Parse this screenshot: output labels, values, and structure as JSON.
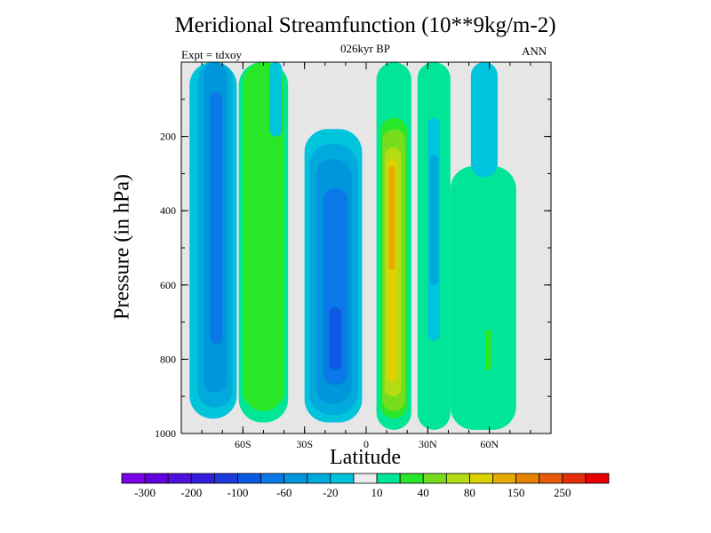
{
  "chart_data": {
    "type": "heatmap",
    "title": "Meridional Streamfunction (10**9kg/m-2)",
    "subtitle": "026kyr BP",
    "left_note": "Expt = tdxoy",
    "right_note": "ANN",
    "xlabel": "Latitude",
    "ylabel": "Pressure (in hPa)",
    "x_range": [
      -90,
      90
    ],
    "y_range": [
      0,
      1000
    ],
    "y_reversed": true,
    "x_ticks": [
      {
        "value": -60,
        "label": "60S"
      },
      {
        "value": -30,
        "label": "30S"
      },
      {
        "value": 0,
        "label": "0"
      },
      {
        "value": 30,
        "label": "30N"
      },
      {
        "value": 60,
        "label": "60N"
      }
    ],
    "y_ticks": [
      {
        "value": 200,
        "label": "200"
      },
      {
        "value": 400,
        "label": "400"
      },
      {
        "value": 600,
        "label": "600"
      },
      {
        "value": 800,
        "label": "800"
      },
      {
        "value": 1000,
        "label": "1000"
      }
    ],
    "background_color": "#e6e6e6",
    "colorbar": {
      "colors": [
        "#7a00e6",
        "#6400e0",
        "#4f10dc",
        "#3420dc",
        "#1e3cdc",
        "#0a5ae6",
        "#0a78e6",
        "#0096dc",
        "#00aadc",
        "#00c3dc",
        "#ebebeb",
        "#00e696",
        "#28e628",
        "#78dc1e",
        "#b4dc14",
        "#dcd200",
        "#e6aa00",
        "#e68200",
        "#e65a0a",
        "#e62d0a",
        "#e60000"
      ],
      "labels": [
        {
          "after_index": 0,
          "text": "-300"
        },
        {
          "after_index": 2,
          "text": "-200"
        },
        {
          "after_index": 4,
          "text": "-100"
        },
        {
          "after_index": 6,
          "text": "-60"
        },
        {
          "after_index": 8,
          "text": "-20"
        },
        {
          "after_index": 10,
          "text": "10"
        },
        {
          "after_index": 12,
          "text": "40"
        },
        {
          "after_index": 14,
          "text": "80"
        },
        {
          "after_index": 16,
          "text": "150"
        },
        {
          "after_index": 18,
          "text": "250"
        }
      ]
    },
    "fill_levels": [
      {
        "lat_min": -86,
        "lat_max": -63,
        "p_min": 0,
        "p_max": 960,
        "color": "#00c3dc"
      },
      {
        "lat_min": -82,
        "lat_max": -65,
        "p_min": 0,
        "p_max": 930,
        "color": "#00aadc"
      },
      {
        "lat_min": -79,
        "lat_max": -68,
        "p_min": 0,
        "p_max": 890,
        "color": "#0096dc"
      },
      {
        "lat_min": -76,
        "lat_max": -70,
        "p_min": 80,
        "p_max": 760,
        "color": "#0a78e6"
      },
      {
        "lat_min": -62,
        "lat_max": -38,
        "p_min": 0,
        "p_max": 970,
        "color": "#00e696"
      },
      {
        "lat_min": -60,
        "lat_max": -40,
        "p_min": 0,
        "p_max": 940,
        "color": "#28e628"
      },
      {
        "lat_min": -47,
        "lat_max": -41,
        "p_min": 0,
        "p_max": 200,
        "color": "#00c3dc"
      },
      {
        "lat_min": -30,
        "lat_max": -2,
        "p_min": 180,
        "p_max": 970,
        "color": "#00c3dc"
      },
      {
        "lat_min": -28,
        "lat_max": -4,
        "p_min": 220,
        "p_max": 950,
        "color": "#00aadc"
      },
      {
        "lat_min": -25,
        "lat_max": -7,
        "p_min": 260,
        "p_max": 920,
        "color": "#0096dc"
      },
      {
        "lat_min": -21,
        "lat_max": -9,
        "p_min": 340,
        "p_max": 870,
        "color": "#0a78e6"
      },
      {
        "lat_min": -18,
        "lat_max": -12,
        "p_min": 660,
        "p_max": 830,
        "color": "#0a5ae6"
      },
      {
        "lat_min": 5,
        "lat_max": 22,
        "p_min": 0,
        "p_max": 990,
        "color": "#00e696"
      },
      {
        "lat_min": 7,
        "lat_max": 20,
        "p_min": 150,
        "p_max": 960,
        "color": "#28e628"
      },
      {
        "lat_min": 8,
        "lat_max": 19,
        "p_min": 180,
        "p_max": 940,
        "color": "#78dc1e"
      },
      {
        "lat_min": 9,
        "lat_max": 17,
        "p_min": 230,
        "p_max": 900,
        "color": "#b4dc14"
      },
      {
        "lat_min": 10,
        "lat_max": 15,
        "p_min": 260,
        "p_max": 860,
        "color": "#dcd200"
      },
      {
        "lat_min": 11,
        "lat_max": 14,
        "p_min": 280,
        "p_max": 560,
        "color": "#e6aa00"
      },
      {
        "lat_min": 25,
        "lat_max": 41,
        "p_min": 0,
        "p_max": 990,
        "color": "#00e696"
      },
      {
        "lat_min": 30,
        "lat_max": 36,
        "p_min": 150,
        "p_max": 750,
        "color": "#00c3dc"
      },
      {
        "lat_min": 31,
        "lat_max": 35,
        "p_min": 250,
        "p_max": 600,
        "color": "#00aadc"
      },
      {
        "lat_min": 41,
        "lat_max": 73,
        "p_min": 280,
        "p_max": 990,
        "color": "#00e696"
      },
      {
        "lat_min": 58,
        "lat_max": 61,
        "p_min": 720,
        "p_max": 830,
        "color": "#28e628"
      },
      {
        "lat_min": 51,
        "lat_max": 64,
        "p_min": 0,
        "p_max": 310,
        "color": "#00c3dc"
      }
    ]
  }
}
